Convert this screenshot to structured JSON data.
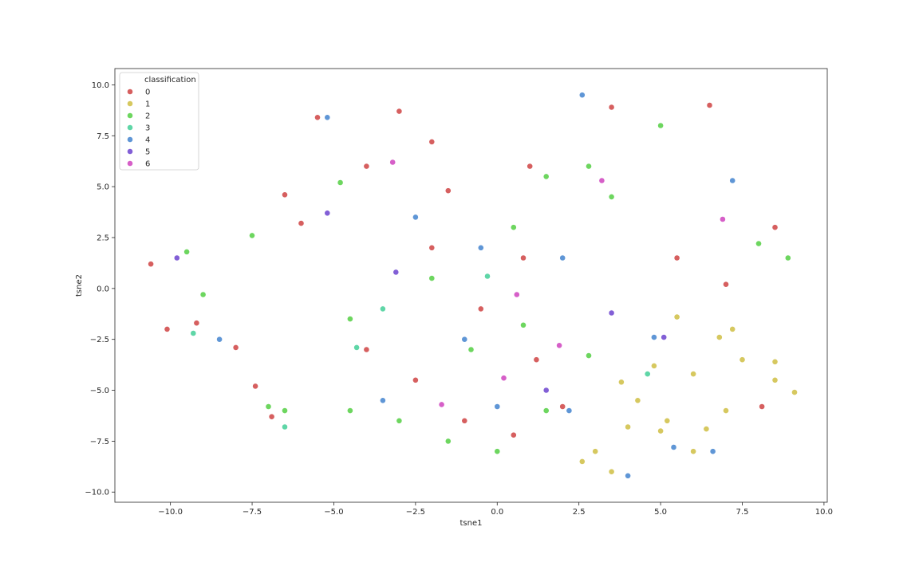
{
  "chart_data": {
    "type": "scatter",
    "title": "",
    "xlabel": "tsne1",
    "ylabel": "tsne2",
    "xlim": [
      -11.7,
      10.1
    ],
    "ylim": [
      -10.5,
      10.8
    ],
    "x_ticks": [
      "−10.0",
      "−7.5",
      "−5.0",
      "−2.5",
      "0.0",
      "2.5",
      "5.0",
      "7.5",
      "10.0"
    ],
    "x_tick_values": [
      -10,
      -7.5,
      -5,
      -2.5,
      0,
      2.5,
      5,
      7.5,
      10
    ],
    "y_ticks": [
      "−10.0",
      "−7.5",
      "−5.0",
      "−2.5",
      "0.0",
      "2.5",
      "5.0",
      "7.5",
      "10.0"
    ],
    "y_tick_values": [
      -10,
      -7.5,
      -5,
      -2.5,
      0,
      2.5,
      5,
      7.5,
      10
    ],
    "grid": false,
    "legend": {
      "title": "classification",
      "placement": "top-left",
      "entries": [
        "0",
        "1",
        "2",
        "3",
        "4",
        "5",
        "6"
      ]
    },
    "series": [
      {
        "name": "0",
        "color": "#d65f5f",
        "points": [
          [
            -10.6,
            1.2
          ],
          [
            -10.1,
            -2.0
          ],
          [
            -9.2,
            -1.7
          ],
          [
            -8.0,
            -2.9
          ],
          [
            -7.4,
            -4.8
          ],
          [
            -6.9,
            -6.3
          ],
          [
            -6.5,
            4.6
          ],
          [
            -5.5,
            8.4
          ],
          [
            -3.0,
            8.7
          ],
          [
            -2.0,
            7.2
          ],
          [
            -4.0,
            6.0
          ],
          [
            -6.0,
            3.2
          ],
          [
            -3.5,
            -1.0
          ],
          [
            -2.5,
            -4.5
          ],
          [
            -1.0,
            -6.5
          ],
          [
            0.5,
            -7.2
          ],
          [
            -4.0,
            -3.0
          ],
          [
            1.2,
            -3.5
          ],
          [
            -2.0,
            2.0
          ],
          [
            3.5,
            8.9
          ],
          [
            6.5,
            9.0
          ],
          [
            8.5,
            3.0
          ],
          [
            7.0,
            0.2
          ],
          [
            5.5,
            1.5
          ],
          [
            2.0,
            -5.8
          ],
          [
            8.1,
            -5.8
          ],
          [
            1.0,
            6.0
          ],
          [
            -1.5,
            4.8
          ],
          [
            -0.5,
            -1.0
          ],
          [
            0.8,
            1.5
          ]
        ]
      },
      {
        "name": "1",
        "color": "#d6c85f",
        "points": [
          [
            3.0,
            -8.0
          ],
          [
            3.5,
            -9.0
          ],
          [
            4.0,
            -6.8
          ],
          [
            5.2,
            -6.5
          ],
          [
            6.0,
            -8.0
          ],
          [
            4.8,
            -3.8
          ],
          [
            7.0,
            -6.0
          ],
          [
            7.5,
            -3.5
          ],
          [
            8.5,
            -4.5
          ],
          [
            9.1,
            -5.1
          ],
          [
            6.8,
            -2.4
          ],
          [
            5.5,
            -1.4
          ],
          [
            2.6,
            -8.5
          ],
          [
            3.8,
            -4.6
          ],
          [
            6.0,
            -4.2
          ],
          [
            8.5,
            -3.6
          ],
          [
            5.0,
            -7.0
          ],
          [
            7.2,
            -2.0
          ],
          [
            4.3,
            -5.5
          ],
          [
            6.4,
            -6.9
          ]
        ]
      },
      {
        "name": "2",
        "color": "#6dd65f",
        "points": [
          [
            -9.5,
            1.8
          ],
          [
            -9.0,
            -0.3
          ],
          [
            -7.0,
            -5.8
          ],
          [
            -6.5,
            -6.0
          ],
          [
            -4.5,
            -1.5
          ],
          [
            -3.0,
            -6.5
          ],
          [
            -1.5,
            -7.5
          ],
          [
            0.0,
            -8.0
          ],
          [
            1.5,
            -6.0
          ],
          [
            -2.0,
            0.5
          ],
          [
            0.5,
            3.0
          ],
          [
            1.5,
            5.5
          ],
          [
            -4.8,
            5.2
          ],
          [
            -7.5,
            2.6
          ],
          [
            2.8,
            6.0
          ],
          [
            3.5,
            4.5
          ],
          [
            8.9,
            1.5
          ],
          [
            8.0,
            2.2
          ],
          [
            5.0,
            8.0
          ],
          [
            -4.5,
            -6.0
          ],
          [
            2.8,
            -3.3
          ],
          [
            -0.8,
            -3.0
          ],
          [
            0.8,
            -1.8
          ]
        ]
      },
      {
        "name": "3",
        "color": "#5fd6a7",
        "points": [
          [
            -6.5,
            -6.8
          ],
          [
            -4.3,
            -2.9
          ],
          [
            -3.5,
            -1.0
          ],
          [
            -0.3,
            0.6
          ],
          [
            4.6,
            -4.2
          ],
          [
            -9.3,
            -2.2
          ]
        ]
      },
      {
        "name": "4",
        "color": "#5f96d6",
        "points": [
          [
            -8.5,
            -2.5
          ],
          [
            -5.2,
            8.4
          ],
          [
            -2.5,
            3.5
          ],
          [
            -1.0,
            -2.5
          ],
          [
            0.0,
            -5.8
          ],
          [
            2.0,
            1.5
          ],
          [
            2.2,
            -6.0
          ],
          [
            4.0,
            -9.2
          ],
          [
            5.4,
            -7.8
          ],
          [
            2.6,
            9.5
          ],
          [
            7.2,
            5.3
          ],
          [
            4.8,
            -2.4
          ],
          [
            6.6,
            -8.0
          ],
          [
            -0.5,
            2.0
          ],
          [
            -3.5,
            -5.5
          ]
        ]
      },
      {
        "name": "5",
        "color": "#825fd6",
        "points": [
          [
            -9.8,
            1.5
          ],
          [
            -5.2,
            3.7
          ],
          [
            -3.1,
            0.8
          ],
          [
            1.5,
            -5.0
          ],
          [
            3.5,
            -1.2
          ],
          [
            5.1,
            -2.4
          ]
        ]
      },
      {
        "name": "6",
        "color": "#d65fc8",
        "points": [
          [
            0.2,
            -4.4
          ],
          [
            -1.7,
            -5.7
          ],
          [
            0.6,
            -0.3
          ],
          [
            1.9,
            -2.8
          ],
          [
            3.2,
            5.3
          ],
          [
            6.9,
            3.4
          ],
          [
            -3.2,
            6.2
          ]
        ]
      }
    ]
  }
}
